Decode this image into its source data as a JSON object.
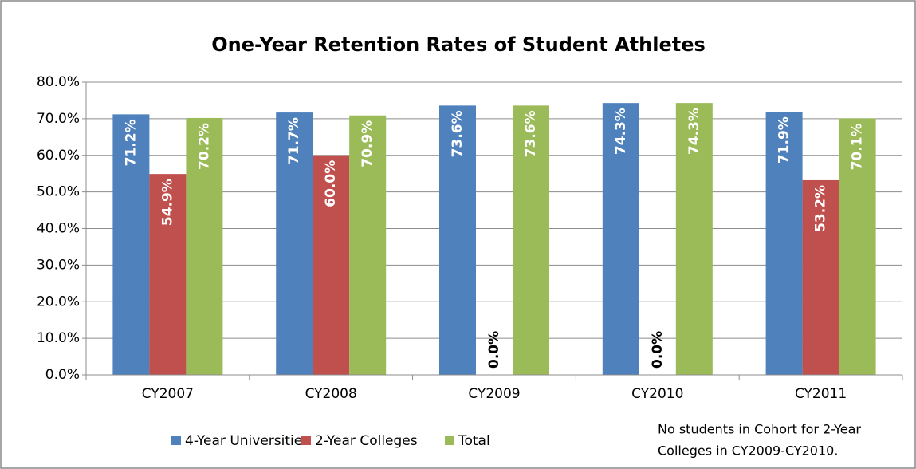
{
  "chart_data": {
    "type": "bar",
    "title": "One-Year Retention Rates of Student Athletes",
    "categories": [
      "CY2007",
      "CY2008",
      "CY2009",
      "CY2010",
      "CY2011"
    ],
    "series": [
      {
        "name": "4-Year Universities",
        "color": "#4f81bd",
        "values": [
          71.2,
          71.7,
          73.6,
          74.3,
          71.9
        ],
        "value_labels": [
          "71.2%",
          "71.7%",
          "73.6%",
          "74.3%",
          "71.9%"
        ]
      },
      {
        "name": "2-Year Colleges",
        "color": "#c0504d",
        "values": [
          54.9,
          60.0,
          0.0,
          0.0,
          53.2
        ],
        "value_labels": [
          "54.9%",
          "60.0%",
          "0.0%",
          "0.0%",
          "53.2%"
        ]
      },
      {
        "name": "Total",
        "color": "#9bbb59",
        "values": [
          70.2,
          70.9,
          73.6,
          74.3,
          70.1
        ],
        "value_labels": [
          "70.2%",
          "70.9%",
          "73.6%",
          "74.3%",
          "70.1%"
        ]
      }
    ],
    "ylim": [
      0,
      80
    ],
    "yticks": [
      {
        "value": 0,
        "label": "0.0%"
      },
      {
        "value": 10,
        "label": "10.0%"
      },
      {
        "value": 20,
        "label": "20.0%"
      },
      {
        "value": 30,
        "label": "30.0%"
      },
      {
        "value": 40,
        "label": "40.0%"
      },
      {
        "value": 50,
        "label": "50.0%"
      },
      {
        "value": 60,
        "label": "60.0%"
      },
      {
        "value": 70,
        "label": "70.0%"
      },
      {
        "value": 80,
        "label": "80.0%"
      }
    ],
    "grid": true,
    "legend": "bottom",
    "annotation": [
      "No students in Cohort for 2-Year",
      "Colleges in CY2009-CY2010."
    ]
  }
}
